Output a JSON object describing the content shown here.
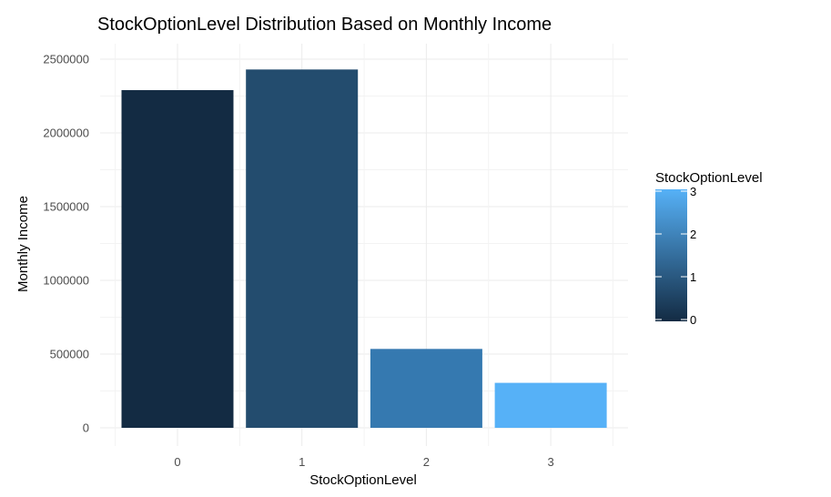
{
  "chart_data": {
    "type": "bar",
    "title": "StockOptionLevel Distribution Based on Monthly Income",
    "xlabel": "StockOptionLevel",
    "ylabel": "Monthly Income",
    "categories": [
      "0",
      "1",
      "2",
      "3"
    ],
    "values": [
      2290000,
      2430000,
      535000,
      305000
    ],
    "ylim": [
      0,
      2500000
    ],
    "yticks": [
      0,
      500000,
      1000000,
      1500000,
      2000000,
      2500000
    ],
    "ytick_labels": [
      "0",
      "500000",
      "1000000",
      "1500000",
      "2000000",
      "2500000"
    ],
    "grid": true,
    "fill_colors": [
      "#132B43",
      "#234C6E",
      "#3579B0",
      "#56B1F7"
    ],
    "legend": {
      "title": "StockOptionLevel",
      "type": "colorbar",
      "placement": "right",
      "range": [
        0,
        3
      ],
      "ticks": [
        "0",
        "1",
        "2",
        "3"
      ],
      "color_low": "#132B43",
      "color_high": "#56B1F7"
    }
  }
}
